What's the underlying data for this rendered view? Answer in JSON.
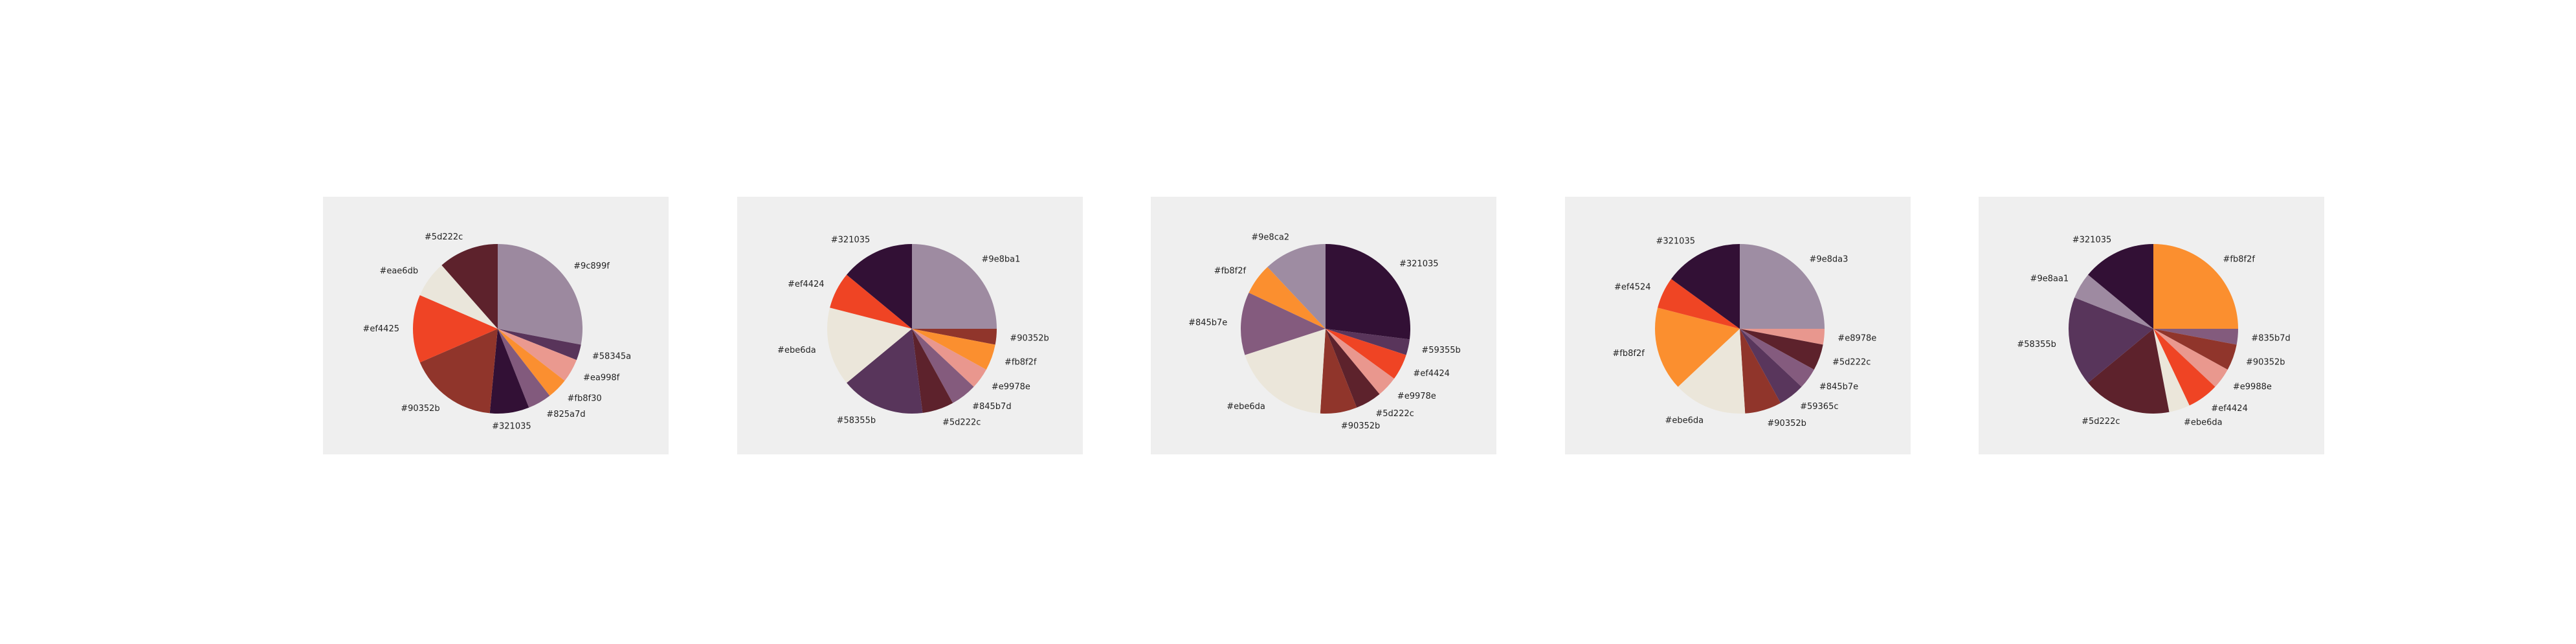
{
  "chart_data": [
    {
      "type": "pie",
      "start_angle_deg": 90,
      "direction": "clockwise",
      "slices": [
        {
          "label": "#9c899f",
          "value": 28,
          "color": "#9c899f"
        },
        {
          "label": "#58345a",
          "value": 3,
          "color": "#58345a"
        },
        {
          "label": "#ea998f",
          "value": 4.5,
          "color": "#ea998f"
        },
        {
          "label": "#fb8f30",
          "value": 4,
          "color": "#fb8f30"
        },
        {
          "label": "#825a7d",
          "value": 4.5,
          "color": "#825a7d"
        },
        {
          "label": "#321035",
          "value": 7.5,
          "color": "#321035"
        },
        {
          "label": "#90352b",
          "value": 17,
          "color": "#90352b"
        },
        {
          "label": "#ef4425",
          "value": 13,
          "color": "#ef4425"
        },
        {
          "label": "#eae6db",
          "value": 7,
          "color": "#eae6db"
        },
        {
          "label": "#5d222c",
          "value": 11.5,
          "color": "#5d222c"
        }
      ]
    },
    {
      "type": "pie",
      "start_angle_deg": 90,
      "direction": "clockwise",
      "slices": [
        {
          "label": "#9e8ba1",
          "value": 25,
          "color": "#9e8ba1"
        },
        {
          "label": "#90352b",
          "value": 3,
          "color": "#90352b"
        },
        {
          "label": "#fb8f2f",
          "value": 5,
          "color": "#fb8f2f"
        },
        {
          "label": "#e9978e",
          "value": 4,
          "color": "#e9978e"
        },
        {
          "label": "#845b7d",
          "value": 5,
          "color": "#845b7d"
        },
        {
          "label": "#5d222c",
          "value": 6,
          "color": "#5d222c"
        },
        {
          "label": "#58355b",
          "value": 16,
          "color": "#58355b"
        },
        {
          "label": "#ebe6da",
          "value": 15,
          "color": "#ebe6da"
        },
        {
          "label": "#ef4424",
          "value": 7,
          "color": "#ef4424"
        },
        {
          "label": "#321035",
          "value": 14,
          "color": "#321035"
        }
      ]
    },
    {
      "type": "pie",
      "start_angle_deg": 90,
      "direction": "clockwise",
      "slices": [
        {
          "label": "#321035",
          "value": 27,
          "color": "#321035"
        },
        {
          "label": "#59355b",
          "value": 3,
          "color": "#59355b"
        },
        {
          "label": "#ef4424",
          "value": 5,
          "color": "#ef4424"
        },
        {
          "label": "#e9978e",
          "value": 4,
          "color": "#e9978e"
        },
        {
          "label": "#5d222c",
          "value": 5,
          "color": "#5d222c"
        },
        {
          "label": "#90352b",
          "value": 7,
          "color": "#90352b"
        },
        {
          "label": "#ebe6da",
          "value": 19,
          "color": "#ebe6da"
        },
        {
          "label": "#845b7e",
          "value": 12,
          "color": "#845b7e"
        },
        {
          "label": "#fb8f2f",
          "value": 6,
          "color": "#fb8f2f"
        },
        {
          "label": "#9e8ca2",
          "value": 12,
          "color": "#9e8ca2"
        }
      ]
    },
    {
      "type": "pie",
      "start_angle_deg": 90,
      "direction": "clockwise",
      "slices": [
        {
          "label": "#9e8da3",
          "value": 25,
          "color": "#9e8da3"
        },
        {
          "label": "#e8978e",
          "value": 3,
          "color": "#e8978e"
        },
        {
          "label": "#5d222c",
          "value": 5,
          "color": "#5d222c"
        },
        {
          "label": "#845b7e",
          "value": 4,
          "color": "#845b7e"
        },
        {
          "label": "#59365c",
          "value": 5,
          "color": "#59365c"
        },
        {
          "label": "#90352b",
          "value": 7,
          "color": "#90352b"
        },
        {
          "label": "#ebe6da",
          "value": 14,
          "color": "#ebe6da"
        },
        {
          "label": "#fb8f2f",
          "value": 16,
          "color": "#fb8f2f"
        },
        {
          "label": "#ef4524",
          "value": 6,
          "color": "#ef4524"
        },
        {
          "label": "#321035",
          "value": 15,
          "color": "#321035"
        }
      ]
    },
    {
      "type": "pie",
      "start_angle_deg": 90,
      "direction": "clockwise",
      "slices": [
        {
          "label": "#fb8f2f",
          "value": 25,
          "color": "#fb8f2f"
        },
        {
          "label": "#835b7d",
          "value": 3,
          "color": "#835b7d"
        },
        {
          "label": "#90352b",
          "value": 5,
          "color": "#90352b"
        },
        {
          "label": "#e9988e",
          "value": 4,
          "color": "#e9988e"
        },
        {
          "label": "#ef4424",
          "value": 6,
          "color": "#ef4424"
        },
        {
          "label": "#ebe6da",
          "value": 4,
          "color": "#ebe6da"
        },
        {
          "label": "#5d222c",
          "value": 17,
          "color": "#5d222c"
        },
        {
          "label": "#58355b",
          "value": 17,
          "color": "#58355b"
        },
        {
          "label": "#9e8aa1",
          "value": 5,
          "color": "#9e8aa1"
        },
        {
          "label": "#321035",
          "value": 14,
          "color": "#321035"
        }
      ]
    }
  ]
}
